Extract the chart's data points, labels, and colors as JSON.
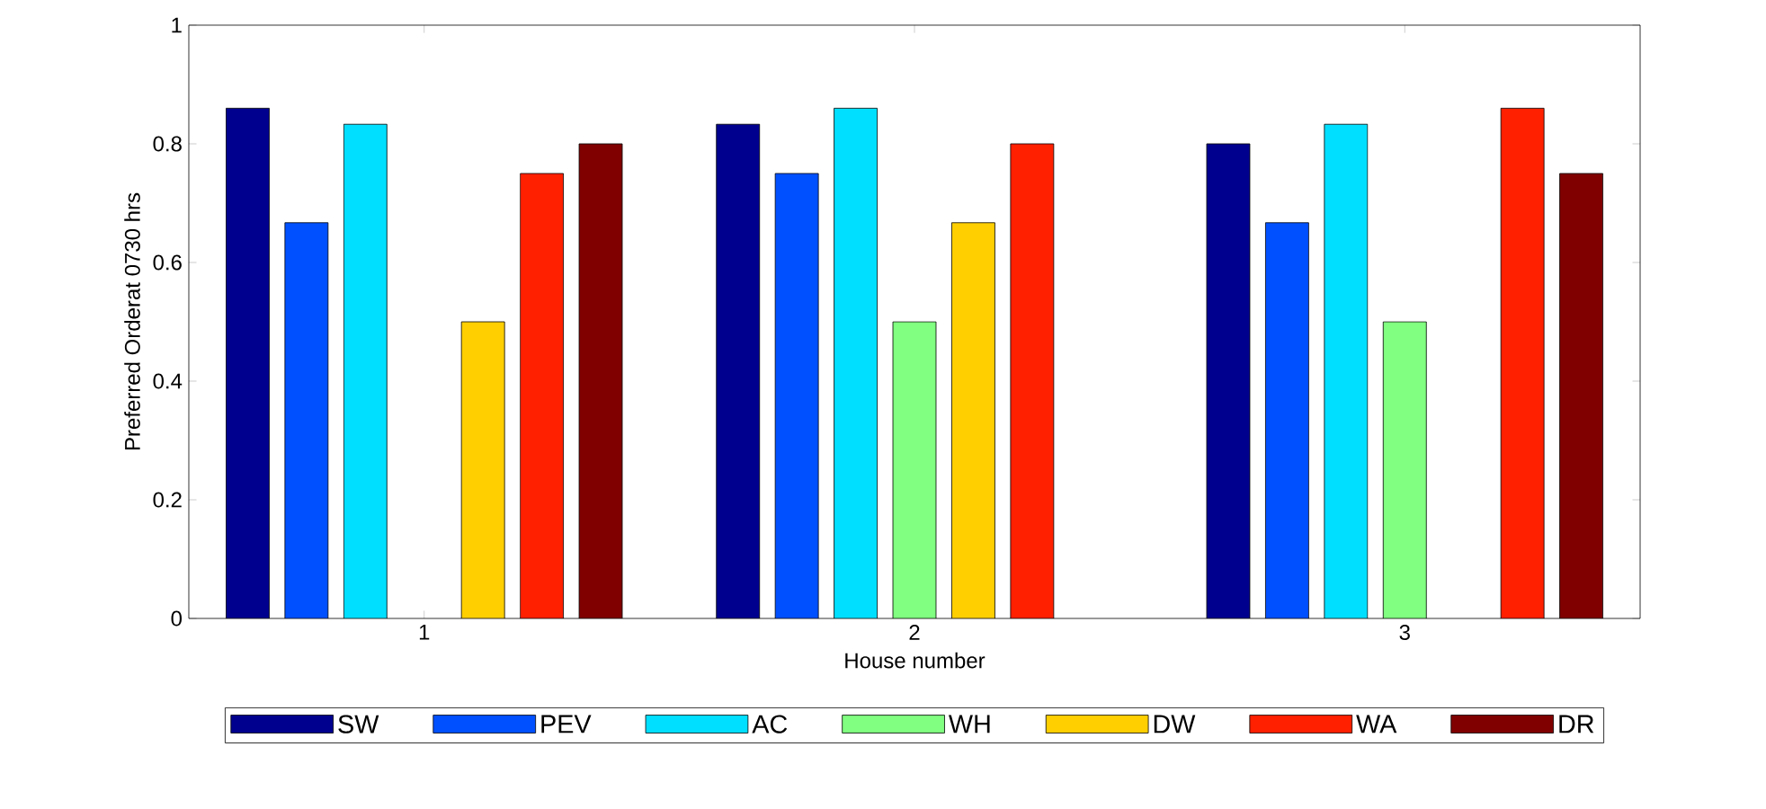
{
  "chart_data": {
    "type": "bar",
    "xlabel": "House number",
    "ylabel": "Preferred Orderat 0730 hrs",
    "categories": [
      "1",
      "2",
      "3"
    ],
    "ylim": [
      0,
      1
    ],
    "yticks": [
      0,
      0.2,
      0.4,
      0.6,
      0.8,
      1
    ],
    "legend": "bottom",
    "series": [
      {
        "name": "SW",
        "color": "#00008f",
        "values": [
          0.86,
          0.833,
          0.8
        ]
      },
      {
        "name": "PEV",
        "color": "#0050ff",
        "values": [
          0.667,
          0.75,
          0.667
        ]
      },
      {
        "name": "AC",
        "color": "#00dfff",
        "values": [
          0.833,
          0.86,
          0.833
        ]
      },
      {
        "name": "WH",
        "color": "#80ff80",
        "values": [
          null,
          0.5,
          0.5
        ]
      },
      {
        "name": "DW",
        "color": "#ffcf00",
        "values": [
          0.5,
          0.667,
          null
        ]
      },
      {
        "name": "WA",
        "color": "#ff2000",
        "values": [
          0.75,
          0.8,
          0.86
        ]
      },
      {
        "name": "DR",
        "color": "#800000",
        "values": [
          0.8,
          null,
          0.75
        ]
      }
    ]
  }
}
